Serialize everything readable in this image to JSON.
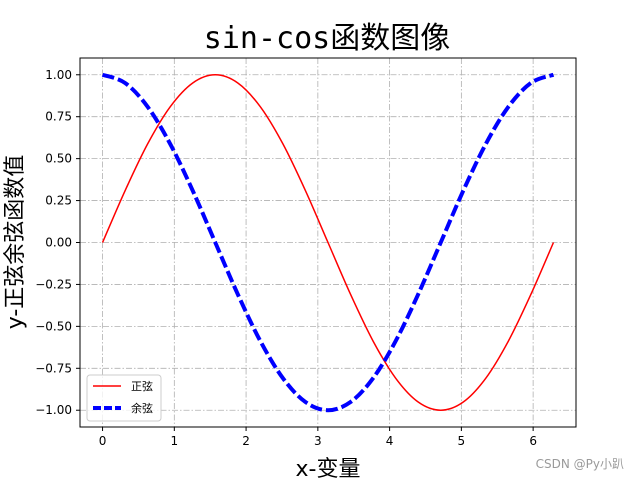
{
  "chart_data": {
    "type": "line",
    "title": "sin-cos函数图像",
    "xlabel": "x-变量",
    "ylabel": "y-正弦余弦函数值",
    "xlim": [
      -0.3142,
      6.5973
    ],
    "ylim": [
      -1.1,
      1.1
    ],
    "xticks": [
      "0",
      "1",
      "2",
      "3",
      "4",
      "5",
      "6"
    ],
    "yticks": [
      "1.00",
      "0.75",
      "0.50",
      "0.25",
      "0.00",
      "−0.25",
      "−0.50",
      "−0.75",
      "−1.00"
    ],
    "grid": true,
    "legend_position": "lower-left",
    "series": [
      {
        "name": "正弦",
        "color": "#ff0000",
        "style": "solid",
        "x": [
          0,
          0.3142,
          0.6283,
          0.9425,
          1.2566,
          1.5708,
          1.885,
          2.1991,
          2.5133,
          2.8274,
          3.1416,
          3.4558,
          3.7699,
          4.0841,
          4.3982,
          4.7124,
          5.0265,
          5.3407,
          5.6549,
          5.969,
          6.2832
        ],
        "y": [
          0,
          0.309,
          0.5878,
          0.809,
          0.9511,
          1,
          0.9511,
          0.809,
          0.5878,
          0.309,
          0,
          -0.309,
          -0.5878,
          -0.809,
          -0.9511,
          -1,
          -0.9511,
          -0.809,
          -0.5878,
          -0.309,
          0
        ]
      },
      {
        "name": "余弦",
        "color": "#0000ff",
        "style": "dashed",
        "x": [
          0,
          0.3142,
          0.6283,
          0.9425,
          1.2566,
          1.5708,
          1.885,
          2.1991,
          2.5133,
          2.8274,
          3.1416,
          3.4558,
          3.7699,
          4.0841,
          4.3982,
          4.7124,
          5.0265,
          5.3407,
          5.6549,
          5.969,
          6.2832
        ],
        "y": [
          1,
          0.9511,
          0.809,
          0.5878,
          0.309,
          0,
          -0.309,
          -0.5878,
          -0.809,
          -0.9511,
          -1,
          -0.9511,
          -0.809,
          -0.5878,
          -0.309,
          0,
          0.309,
          0.5878,
          0.809,
          0.9511,
          1
        ]
      }
    ]
  },
  "watermark": "CSDN @Py小趴"
}
